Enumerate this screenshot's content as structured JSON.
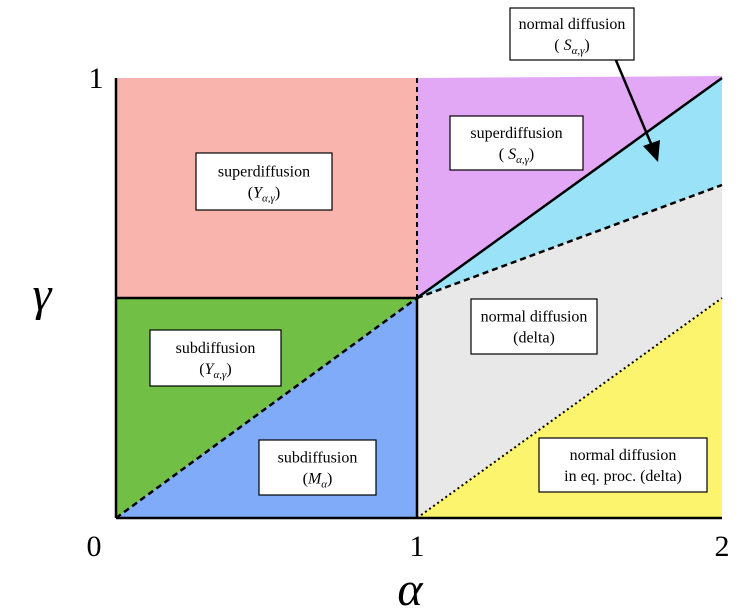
{
  "axes": {
    "x_label": "α",
    "y_label": "γ",
    "x_ticks": [
      "0",
      "1",
      "2"
    ],
    "y_ticks": [
      "1"
    ]
  },
  "regions": [
    {
      "line1": "superdiffusion",
      "line2": [
        "(",
        "Y",
        "α,γ",
        ")"
      ]
    },
    {
      "line1": "superdiffusion",
      "line2": [
        "( ",
        "S",
        "α,γ",
        ")"
      ]
    },
    {
      "line1": "normal diffusion",
      "line2": [
        "( ",
        "S",
        "α,γ",
        ")"
      ]
    },
    {
      "line1": "subdiffusion",
      "line2": [
        "(",
        "Y",
        "α,γ",
        ")"
      ]
    },
    {
      "line1": "normal diffusion",
      "line2": [
        "(delta)"
      ]
    },
    {
      "line1": "subdiffusion",
      "line2": [
        "(",
        "M",
        "α",
        ")"
      ]
    },
    {
      "line1": "normal diffusion",
      "line2": [
        "in eq. proc. (delta)"
      ]
    }
  ]
}
